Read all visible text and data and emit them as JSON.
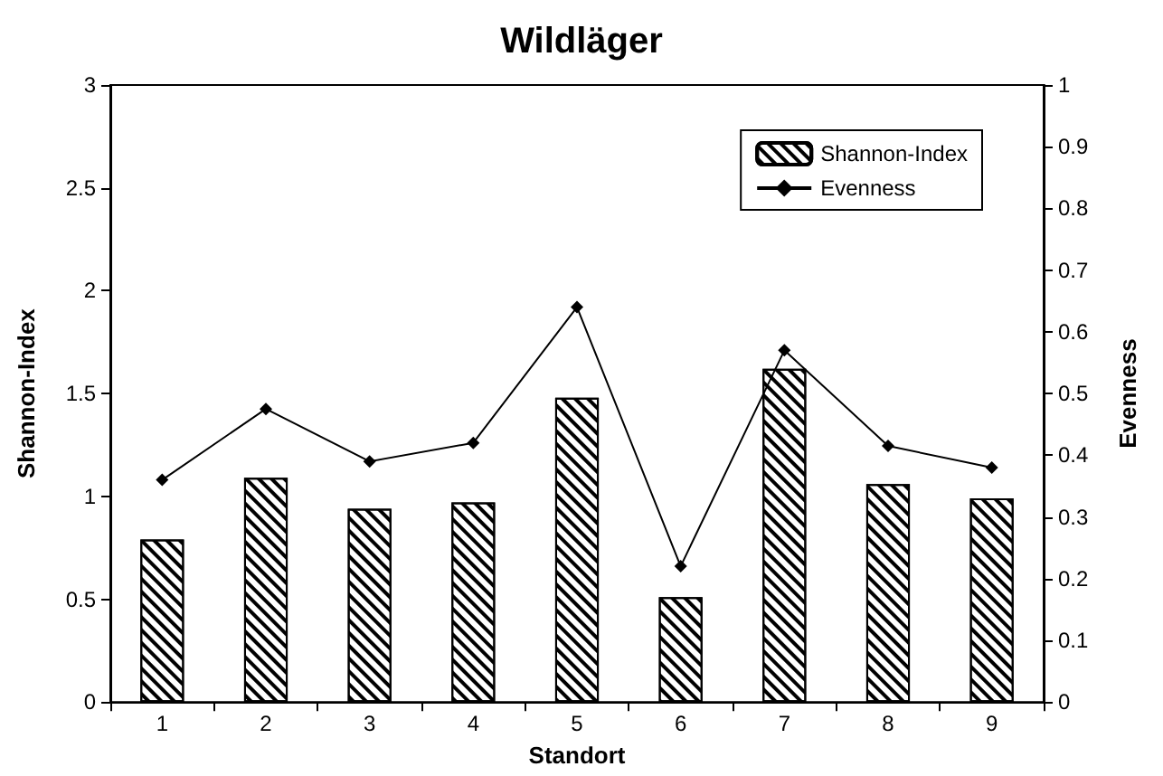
{
  "chart_data": {
    "type": "bar",
    "title": "Wildläger",
    "xlabel": "Standort",
    "ylabel": "Shannon-Index",
    "y2label": "Evenness",
    "categories": [
      "1",
      "2",
      "3",
      "4",
      "5",
      "6",
      "7",
      "8",
      "9"
    ],
    "series": [
      {
        "name": "Shannon-Index",
        "color": "#000000",
        "values": [
          0.79,
          1.09,
          0.94,
          0.97,
          1.48,
          0.51,
          1.62,
          1.06,
          0.99
        ]
      },
      {
        "name": "Evenness",
        "type": "line",
        "axis": "y2",
        "color": "#000000",
        "marker": "diamond",
        "values": [
          0.36,
          0.475,
          0.39,
          0.42,
          0.64,
          0.22,
          0.57,
          0.415,
          0.38
        ]
      }
    ],
    "ylim": [
      0,
      3
    ],
    "yticks": [
      0,
      0.5,
      1,
      1.5,
      2,
      2.5,
      3
    ],
    "y2lim": [
      0,
      1
    ],
    "y2ticks": [
      0,
      0.1,
      0.2,
      0.3,
      0.4,
      0.5,
      0.6,
      0.7,
      0.8,
      0.9,
      1
    ],
    "legend": "top right",
    "grid": false
  }
}
